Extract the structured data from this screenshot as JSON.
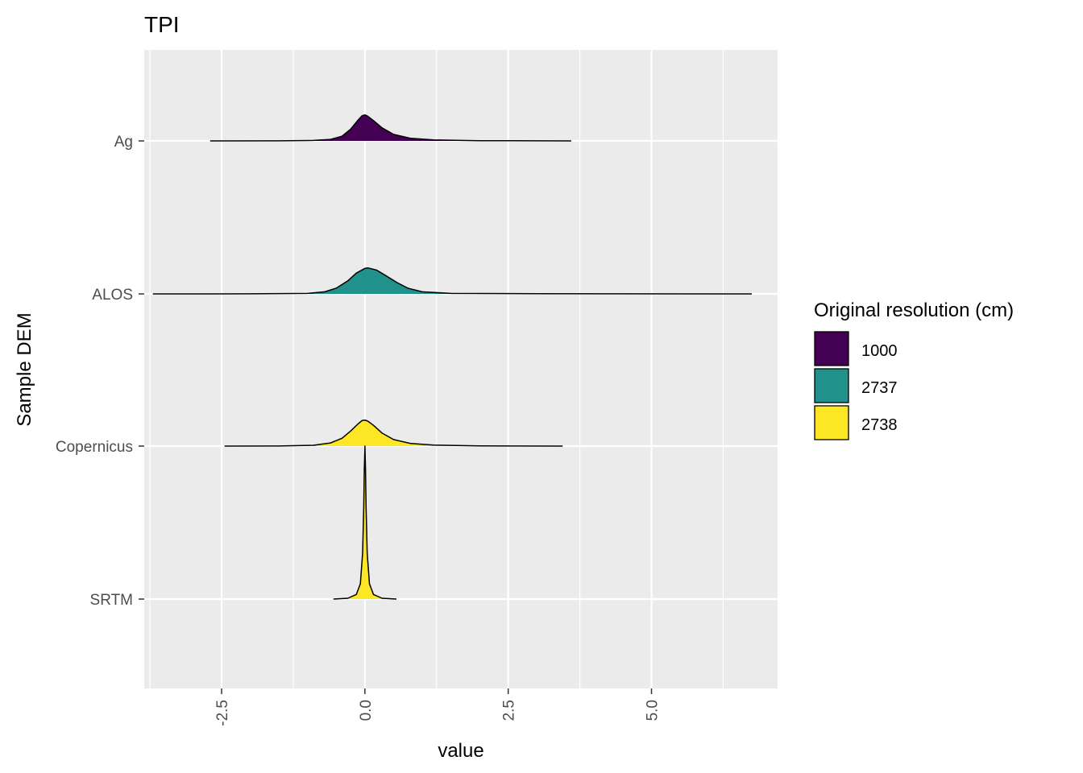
{
  "chart_data": {
    "type": "ridgeline",
    "title": "TPI",
    "xlabel": "value",
    "ylabel": "Sample DEM",
    "xlim": [
      -3.85,
      7.2
    ],
    "x_ticks": [
      {
        "value": -2.5,
        "label": "-2.5"
      },
      {
        "value": 0.0,
        "label": "0.0"
      },
      {
        "value": 2.5,
        "label": "2.5"
      },
      {
        "value": 5.0,
        "label": "5.0"
      }
    ],
    "categories": [
      "Ag",
      "ALOS",
      "Copernicus",
      "SRTM"
    ],
    "legend": {
      "title": "Original resolution (cm)",
      "placement": "right",
      "items": [
        {
          "label": "1000",
          "color": "#440154"
        },
        {
          "label": "2737",
          "color": "#21918c"
        },
        {
          "label": "2738",
          "color": "#fde725"
        }
      ]
    },
    "series": [
      {
        "category": "Ag",
        "group": "1000",
        "color": "#440154",
        "x": [
          -2.7,
          -1.5,
          -0.9,
          -0.6,
          -0.4,
          -0.25,
          -0.12,
          -0.05,
          0.0,
          0.05,
          0.15,
          0.3,
          0.5,
          0.8,
          1.2,
          2.0,
          3.6
        ],
        "density": [
          0,
          0.003,
          0.02,
          0.06,
          0.18,
          0.45,
          0.8,
          0.97,
          1.0,
          0.95,
          0.78,
          0.5,
          0.25,
          0.1,
          0.04,
          0.01,
          0
        ]
      },
      {
        "category": "ALOS",
        "group": "2737",
        "color": "#21918c",
        "x": [
          -3.7,
          -2.0,
          -1.0,
          -0.7,
          -0.5,
          -0.3,
          -0.15,
          0.0,
          0.05,
          0.2,
          0.35,
          0.55,
          0.75,
          1.0,
          1.5,
          3.0,
          6.75
        ],
        "density": [
          0,
          0.003,
          0.02,
          0.08,
          0.22,
          0.5,
          0.8,
          0.98,
          1.0,
          0.92,
          0.72,
          0.45,
          0.22,
          0.08,
          0.02,
          0.005,
          0
        ]
      },
      {
        "category": "Copernicus",
        "group": "2738",
        "color": "#fde725",
        "x": [
          -2.45,
          -1.5,
          -0.9,
          -0.6,
          -0.4,
          -0.25,
          -0.12,
          -0.05,
          0.0,
          0.05,
          0.15,
          0.3,
          0.5,
          0.8,
          1.2,
          2.0,
          3.45
        ],
        "density": [
          0,
          0.003,
          0.03,
          0.12,
          0.3,
          0.58,
          0.85,
          0.98,
          1.0,
          0.96,
          0.8,
          0.5,
          0.25,
          0.1,
          0.04,
          0.01,
          0
        ]
      },
      {
        "category": "SRTM",
        "group": "2738",
        "color": "#fde725",
        "x": [
          -0.55,
          -0.3,
          -0.15,
          -0.08,
          -0.04,
          -0.02,
          -0.01,
          0.0,
          0.01,
          0.02,
          0.04,
          0.08,
          0.15,
          0.3,
          0.55
        ],
        "density": [
          0,
          0.005,
          0.03,
          0.1,
          0.3,
          0.6,
          0.85,
          1.0,
          0.85,
          0.6,
          0.3,
          0.1,
          0.03,
          0.005,
          0
        ]
      }
    ]
  }
}
